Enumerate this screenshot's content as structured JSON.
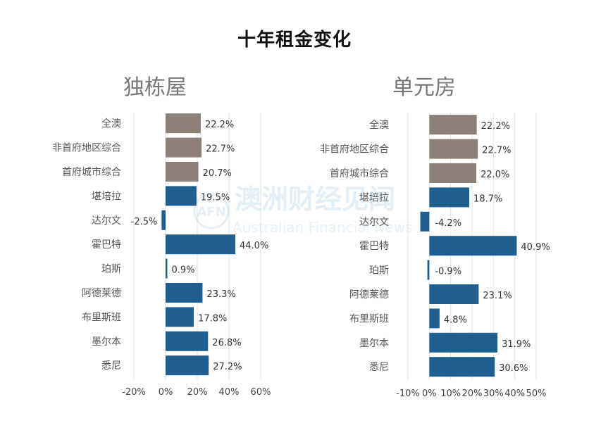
{
  "title": "十年租金变化",
  "watermark": {
    "chinese": "澳洲财经见闻",
    "english": "Australian Financial News",
    "logo_text": "AFN"
  },
  "colors": {
    "aggregate": "#8c8079",
    "city": "#1f5f8f"
  },
  "chart_data": [
    {
      "type": "bar",
      "orientation": "horizontal",
      "title": "独栋屋",
      "categories": [
        "全澳",
        "非首府地区综合",
        "首府城市综合",
        "堪培拉",
        "达尔文",
        "霍巴特",
        "珀斯",
        "阿德莱德",
        "布里斯班",
        "墨尔本",
        "悉尼"
      ],
      "values": [
        22.2,
        22.7,
        20.7,
        19.5,
        -2.5,
        44.0,
        0.9,
        23.3,
        17.8,
        26.8,
        27.2
      ],
      "labels": [
        "22.2%",
        "22.7%",
        "20.7%",
        "19.5%",
        "-2.5%",
        "44.0%",
        "0.9%",
        "23.3%",
        "17.8%",
        "26.8%",
        "27.2%"
      ],
      "groups": [
        "aggregate",
        "aggregate",
        "aggregate",
        "city",
        "city",
        "city",
        "city",
        "city",
        "city",
        "city",
        "city"
      ],
      "xlim": [
        -20,
        60
      ],
      "ticks": [
        -20,
        0,
        20,
        40,
        60
      ],
      "tick_labels": [
        "-20%",
        "0%",
        "20%",
        "40%",
        "60%"
      ]
    },
    {
      "type": "bar",
      "orientation": "horizontal",
      "title": "单元房",
      "categories": [
        "全澳",
        "非首府地区综合",
        "首府城市综合",
        "堪培拉",
        "达尔文",
        "霍巴特",
        "珀斯",
        "阿德莱德",
        "布里斯班",
        "墨尔本",
        "悉尼"
      ],
      "values": [
        22.2,
        22.7,
        22.0,
        18.7,
        -4.2,
        40.9,
        -0.9,
        23.1,
        4.8,
        31.9,
        30.6
      ],
      "labels": [
        "22.2%",
        "22.7%",
        "22.0%",
        "18.7%",
        "-4.2%",
        "40.9%",
        "-0.9%",
        "23.1%",
        "4.8%",
        "31.9%",
        "30.6%"
      ],
      "groups": [
        "aggregate",
        "aggregate",
        "aggregate",
        "city",
        "city",
        "city",
        "city",
        "city",
        "city",
        "city",
        "city"
      ],
      "xlim": [
        -10,
        50
      ],
      "ticks": [
        -10,
        0,
        10,
        20,
        30,
        40,
        50
      ],
      "tick_labels": [
        "-10%",
        "0%",
        "10%",
        "20%",
        "30%",
        "40%",
        "50%"
      ]
    }
  ]
}
